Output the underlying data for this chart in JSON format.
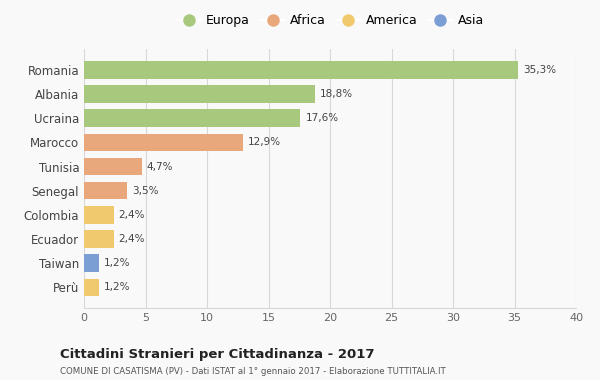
{
  "countries": [
    "Romania",
    "Albania",
    "Ucraina",
    "Marocco",
    "Tunisia",
    "Senegal",
    "Colombia",
    "Ecuador",
    "Taiwan",
    "Perù"
  ],
  "values": [
    35.3,
    18.8,
    17.6,
    12.9,
    4.7,
    3.5,
    2.4,
    2.4,
    1.2,
    1.2
  ],
  "labels": [
    "35,3%",
    "18,8%",
    "17,6%",
    "12,9%",
    "4,7%",
    "3,5%",
    "2,4%",
    "2,4%",
    "1,2%",
    "1,2%"
  ],
  "categories": [
    "Europa",
    "Africa",
    "America",
    "Asia"
  ],
  "continent": [
    "Europa",
    "Europa",
    "Europa",
    "Africa",
    "Africa",
    "Africa",
    "America",
    "America",
    "Asia",
    "America"
  ],
  "colors": {
    "Europa": "#a8c87e",
    "Africa": "#e8a87c",
    "America": "#f0c96e",
    "Asia": "#7b9fd4"
  },
  "xlim": [
    0,
    40
  ],
  "xticks": [
    0,
    5,
    10,
    15,
    20,
    25,
    30,
    35,
    40
  ],
  "title": "Cittadini Stranieri per Cittadinanza - 2017",
  "subtitle": "COMUNE DI CASATISMA (PV) - Dati ISTAT al 1° gennaio 2017 - Elaborazione TUTTITALIA.IT",
  "background_color": "#f9f9f9",
  "bar_height": 0.72,
  "grid_color": "#d8d8d8"
}
